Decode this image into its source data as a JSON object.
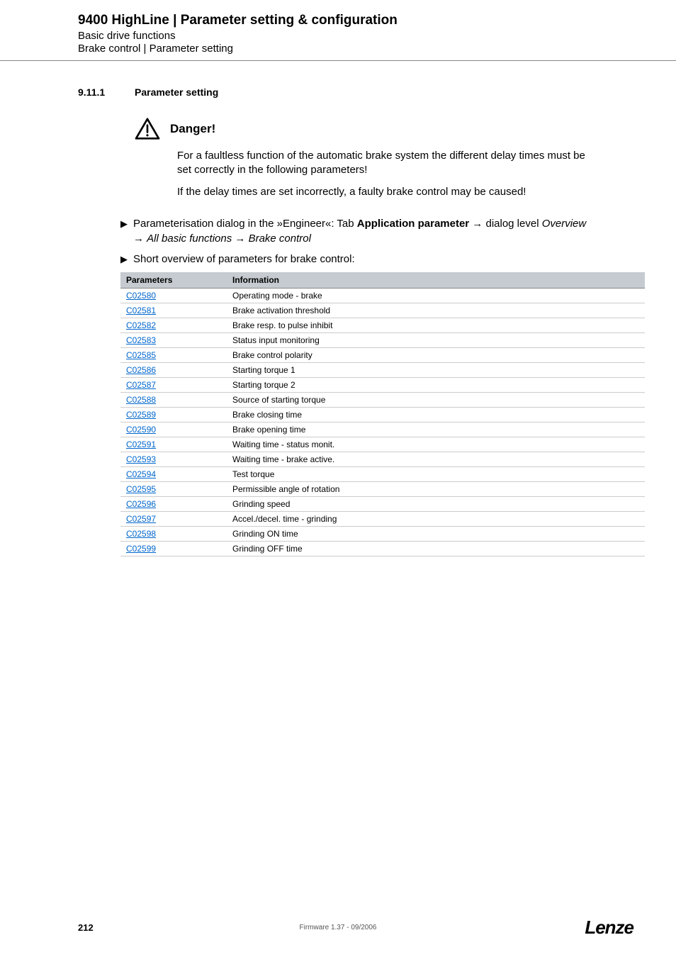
{
  "header": {
    "title": "9400 HighLine | Parameter setting & configuration",
    "subtitle1": "Basic drive functions",
    "subtitle2": "Brake control | Parameter setting"
  },
  "section": {
    "number": "9.11.1",
    "title": "Parameter setting"
  },
  "danger": {
    "label": "Danger!",
    "text1": "For a faultless function of the automatic brake system the different delay times must be set correctly in the following parameters!",
    "text2": "If the delay times are set incorrectly, a faulty brake control may be caused!"
  },
  "bullets": {
    "b1_pre": "Parameterisation dialog in the »Engineer«: Tab ",
    "b1_bold": "Application parameter",
    "b1_mid": " dialog level ",
    "b1_it1": "Overview",
    "b1_it2": "All basic functions",
    "b1_it3": "Brake control",
    "b2": "Short overview of parameters for brake control:"
  },
  "table": {
    "header": {
      "col1": "Parameters",
      "col2": "Information"
    },
    "rows": [
      {
        "param": "C02580",
        "info": "Operating mode - brake"
      },
      {
        "param": "C02581",
        "info": "Brake activation threshold"
      },
      {
        "param": "C02582",
        "info": "Brake resp. to pulse inhibit"
      },
      {
        "param": "C02583",
        "info": "Status input monitoring"
      },
      {
        "param": "C02585",
        "info": "Brake control polarity"
      },
      {
        "param": "C02586",
        "info": "Starting torque 1"
      },
      {
        "param": "C02587",
        "info": "Starting torque 2"
      },
      {
        "param": "C02588",
        "info": "Source of starting torque"
      },
      {
        "param": "C02589",
        "info": "Brake closing time"
      },
      {
        "param": "C02590",
        "info": "Brake opening time"
      },
      {
        "param": "C02591",
        "info": "Waiting time - status monit."
      },
      {
        "param": "C02593",
        "info": "Waiting time - brake active."
      },
      {
        "param": "C02594",
        "info": "Test torque"
      },
      {
        "param": "C02595",
        "info": "Permissible angle of rotation"
      },
      {
        "param": "C02596",
        "info": "Grinding speed"
      },
      {
        "param": "C02597",
        "info": "Accel./decel. time - grinding"
      },
      {
        "param": "C02598",
        "info": "Grinding ON time"
      },
      {
        "param": "C02599",
        "info": "Grinding OFF time"
      }
    ],
    "link_color": "#0066cc",
    "header_bg": "#c5cbd0",
    "row_border": "#cccccc"
  },
  "footer": {
    "page_number": "212",
    "center": "Firmware 1.37 - 09/2006",
    "logo": "Lenze"
  }
}
